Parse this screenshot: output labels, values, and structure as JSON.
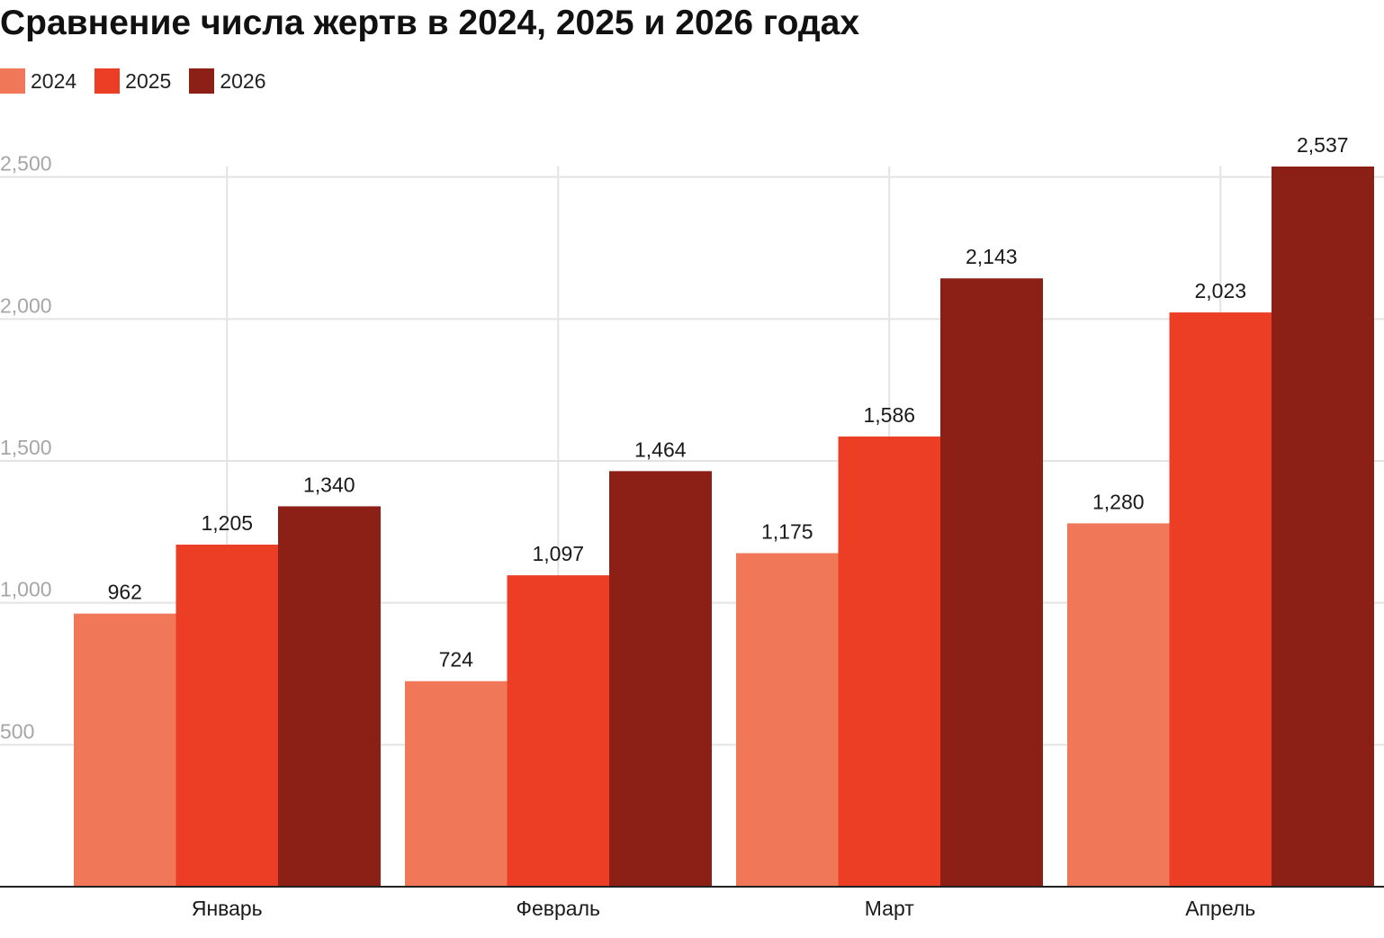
{
  "chart_data": {
    "type": "bar",
    "title": "Сравнение числа жертв в 2024, 2025 и 2026 годах",
    "xlabel": "",
    "ylabel": "",
    "categories": [
      "Январь",
      "Февраль",
      "Март",
      "Апрель"
    ],
    "series": [
      {
        "name": "2024",
        "color": "#f07858",
        "values": [
          962,
          724,
          1175,
          1280
        ],
        "labels": [
          "962",
          "724",
          "1,175",
          "1,280"
        ]
      },
      {
        "name": "2025",
        "color": "#ec3e24",
        "values": [
          1205,
          1097,
          1586,
          2023
        ],
        "labels": [
          "1,205",
          "1,097",
          "1,586",
          "2,023"
        ]
      },
      {
        "name": "2026",
        "color": "#8c1f16",
        "values": [
          1340,
          1464,
          2143,
          2537
        ],
        "labels": [
          "1,340",
          "1,464",
          "2,143",
          "2,537"
        ]
      }
    ],
    "ylim": [
      0,
      2537
    ],
    "yticks": [
      500,
      1000,
      1500,
      2000,
      2500
    ],
    "ytick_labels": [
      "500",
      "1,000",
      "1,500",
      "2,000",
      "2,500"
    ],
    "grid": true,
    "legend": "top-left"
  }
}
